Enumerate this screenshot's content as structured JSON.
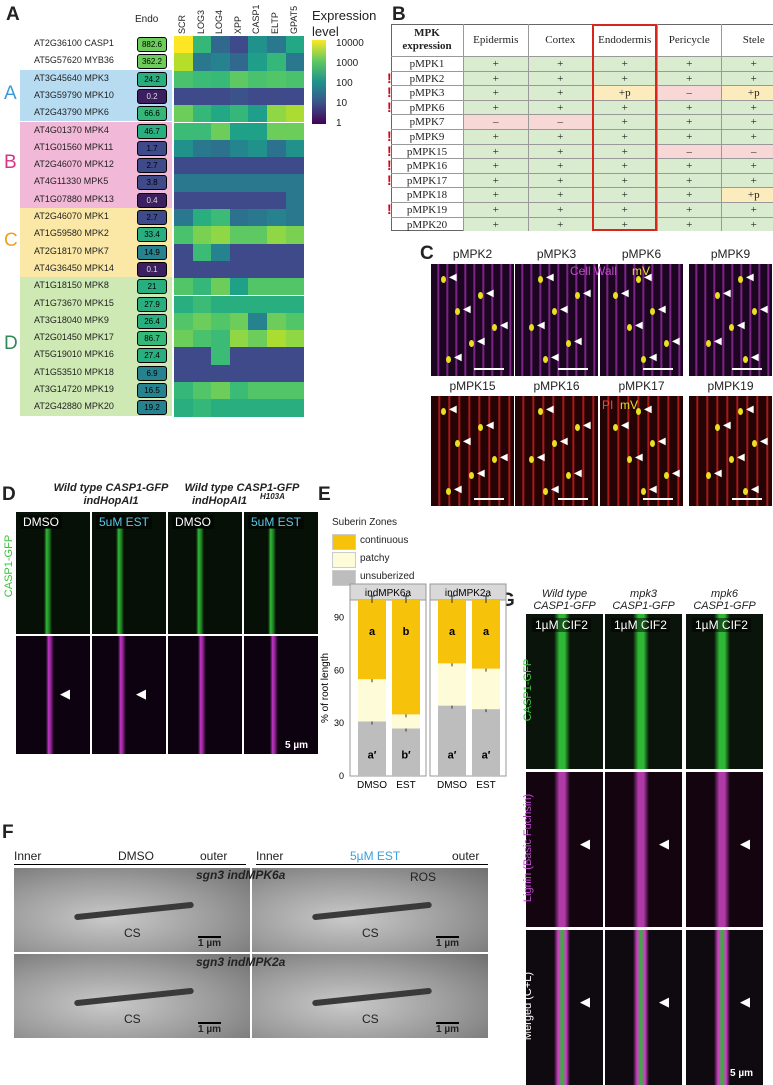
{
  "panels": {
    "A": "A",
    "B": "B",
    "C": "C",
    "D": "D",
    "E": "E",
    "F": "F",
    "G": "G"
  },
  "panelA": {
    "endo_header": "Endo",
    "columns": [
      "SCR",
      "LOG3",
      "LOG4",
      "XPP",
      "CASP1",
      "ELTP",
      "GPAT5"
    ],
    "legend_title": "Expression level",
    "legend_ticks": [
      "10000",
      "1000",
      "100",
      "10",
      "1"
    ],
    "groups": [
      "A",
      "B",
      "C",
      "D"
    ],
    "group_colors": {
      "A": "#b7dcf2",
      "B": "#f2b8d8",
      "C": "#fbe8a6",
      "D": "#cfe9b4"
    },
    "group_letter_colors": {
      "A": "#3a9ad9",
      "B": "#d63384",
      "C": "#f0a020",
      "D": "#2e8b57"
    },
    "rows": [
      {
        "id": "AT2G36100",
        "name": "CASP1",
        "endo": "882.6"
      },
      {
        "id": "AT5G57620",
        "name": "MYB36",
        "endo": "362.2"
      },
      {
        "id": "AT3G45640",
        "name": "MPK3",
        "endo": "24.2"
      },
      {
        "id": "AT3G59790",
        "name": "MPK10",
        "endo": "0.2"
      },
      {
        "id": "AT2G43790",
        "name": "MPK6",
        "endo": "66.6"
      },
      {
        "id": "AT4G01370",
        "name": "MPK4",
        "endo": "46.7"
      },
      {
        "id": "AT1G01560",
        "name": "MPK11",
        "endo": "1.7"
      },
      {
        "id": "AT2G46070",
        "name": "MPK12",
        "endo": "2.7"
      },
      {
        "id": "AT4G11330",
        "name": "MPK5",
        "endo": "3.8"
      },
      {
        "id": "AT1G07880",
        "name": "MPK13",
        "endo": "0.4"
      },
      {
        "id": "AT2G46070",
        "name": "MPK1",
        "endo": "2.7"
      },
      {
        "id": "AT1G59580",
        "name": "MPK2",
        "endo": "33.4"
      },
      {
        "id": "AT2G18170",
        "name": "MPK7",
        "endo": "14.9"
      },
      {
        "id": "AT4G36450",
        "name": "MPK14",
        "endo": "0.1"
      },
      {
        "id": "AT1G18150",
        "name": "MPK8",
        "endo": "21"
      },
      {
        "id": "AT1G73670",
        "name": "MPK15",
        "endo": "27.9"
      },
      {
        "id": "AT3G18040",
        "name": "MPK9",
        "endo": "26.4"
      },
      {
        "id": "AT2G01450",
        "name": "MPK17",
        "endo": "86.7"
      },
      {
        "id": "AT5G19010",
        "name": "MPK16",
        "endo": "27.4"
      },
      {
        "id": "AT1G53510",
        "name": "MPK18",
        "endo": "6.9"
      },
      {
        "id": "AT3G14720",
        "name": "MPK19",
        "endo": "16.5"
      },
      {
        "id": "AT2G42880",
        "name": "MPK20",
        "endo": "19.2"
      }
    ],
    "heat_colors": [
      [
        "#fde725",
        "#35b779",
        "#31688e",
        "#3e4a89",
        "#21918c",
        "#2a788e",
        "#22a884"
      ],
      [
        "#b5de2b",
        "#2a788e",
        "#26828e",
        "#31688e",
        "#1f9e89",
        "#35b779",
        "#2a788e"
      ],
      [
        "#4ac16d",
        "#3bbb75",
        "#38b977",
        "#5ec962",
        "#4ac16d",
        "#52c569",
        "#4ac16d"
      ],
      [
        "#3e4a89",
        "#3e4a89",
        "#3e4a89",
        "#3b528b",
        "#3e4a89",
        "#3e4a89",
        "#3e4a89"
      ],
      [
        "#6ccd5a",
        "#35b779",
        "#22a884",
        "#35b779",
        "#1f9e89",
        "#8fd744",
        "#aadc32"
      ],
      [
        "#3bbb75",
        "#3bbb75",
        "#6ccd5a",
        "#1fa188",
        "#1fa188",
        "#6ccd5a",
        "#6ccd5a"
      ],
      [
        "#21918c",
        "#2a788e",
        "#2c728e",
        "#25858e",
        "#21918c",
        "#2c728e",
        "#21918c"
      ],
      [
        "#3e4a89",
        "#3e4a89",
        "#3e4a89",
        "#3e4a89",
        "#3e4a89",
        "#3e4a89",
        "#3e4a89"
      ],
      [
        "#2a788e",
        "#2a788e",
        "#2a788e",
        "#2a788e",
        "#2a788e",
        "#2a788e",
        "#2a788e"
      ],
      [
        "#3e4a89",
        "#3e4a89",
        "#3e4a89",
        "#3e4a89",
        "#3e4a89",
        "#3e4a89",
        "#2a788e"
      ],
      [
        "#2a788e",
        "#29af7f",
        "#3bbb75",
        "#2c728e",
        "#2a788e",
        "#26828e",
        "#2a788e"
      ],
      [
        "#4ac16d",
        "#7ad151",
        "#8fd744",
        "#5ec962",
        "#5ec962",
        "#8fd744",
        "#7ad151"
      ],
      [
        "#3e4a89",
        "#3bbb75",
        "#26828e",
        "#3e4a89",
        "#3e4a89",
        "#3e4a89",
        "#3e4a89"
      ],
      [
        "#3e4a89",
        "#3e4a89",
        "#3e4a89",
        "#3e4a89",
        "#3e4a89",
        "#3e4a89",
        "#3e4a89"
      ],
      [
        "#52c569",
        "#35b779",
        "#6ccd5a",
        "#1fa188",
        "#52c569",
        "#52c569",
        "#52c569"
      ],
      [
        "#29af7f",
        "#3bbb75",
        "#29af7f",
        "#29af7f",
        "#29af7f",
        "#29af7f",
        "#29af7f"
      ],
      [
        "#52c569",
        "#6ccd5a",
        "#52c569",
        "#6ccd5a",
        "#26828e",
        "#6ccd5a",
        "#52c569"
      ],
      [
        "#6ccd5a",
        "#4ac16d",
        "#3bbb75",
        "#8fd744",
        "#6ccd5a",
        "#aadc32",
        "#8fd744"
      ],
      [
        "#3e4a89",
        "#3e4a89",
        "#3bbb75",
        "#3e4a89",
        "#3e4a89",
        "#3e4a89",
        "#3e4a89"
      ],
      [
        "#3e4a89",
        "#3e4a89",
        "#3e4a89",
        "#3e4a89",
        "#3e4a89",
        "#3e4a89",
        "#3e4a89"
      ],
      [
        "#35b779",
        "#52c569",
        "#6ccd5a",
        "#3bbb75",
        "#52c569",
        "#52c569",
        "#52c569"
      ],
      [
        "#29af7f",
        "#35b779",
        "#29af7f",
        "#29af7f",
        "#29af7f",
        "#29af7f",
        "#29af7f"
      ]
    ]
  },
  "panelB": {
    "header_line1": "MPK",
    "header_line2": "expression",
    "columns": [
      "Epidermis",
      "Cortex",
      "Endodermis",
      "Pericycle",
      "Stele"
    ],
    "rows": [
      {
        "name": "pMPK1",
        "flag": "",
        "vals": [
          "+",
          "+",
          "+",
          "+",
          "+"
        ]
      },
      {
        "name": "pMPK2",
        "flag": "!",
        "vals": [
          "+",
          "+",
          "+",
          "+",
          "+"
        ]
      },
      {
        "name": "pMPK3",
        "flag": "!",
        "vals": [
          "+",
          "+",
          "+p",
          "–",
          "+p"
        ]
      },
      {
        "name": "pMPK6",
        "flag": "!",
        "vals": [
          "+",
          "+",
          "+",
          "+",
          "+"
        ]
      },
      {
        "name": "pMPK7",
        "flag": "",
        "vals": [
          "–",
          "–",
          "+",
          "+",
          "+"
        ]
      },
      {
        "name": "pMPK9",
        "flag": "!",
        "vals": [
          "+",
          "+",
          "+",
          "+",
          "+"
        ]
      },
      {
        "name": "pMPK15",
        "flag": "!",
        "vals": [
          "+",
          "+",
          "+",
          "–",
          "–"
        ]
      },
      {
        "name": "pMPK16",
        "flag": "!",
        "vals": [
          "+",
          "+",
          "+",
          "+",
          "+"
        ]
      },
      {
        "name": "pMPK17",
        "flag": "!",
        "vals": [
          "+",
          "+",
          "+",
          "+",
          "+"
        ]
      },
      {
        "name": "pMPK18",
        "flag": "",
        "vals": [
          "+",
          "+",
          "+",
          "+",
          "+p"
        ]
      },
      {
        "name": "pMPK19",
        "flag": "!",
        "vals": [
          "+",
          "+",
          "+",
          "+",
          "+"
        ]
      },
      {
        "name": "pMPK20",
        "flag": "",
        "vals": [
          "+",
          "+",
          "+",
          "+",
          "+"
        ]
      }
    ],
    "color_plus": "#d9ecd0",
    "color_minus": "#f8d7d7",
    "color_p": "#fcebbd"
  },
  "panelC": {
    "top_labels": [
      "pMPK2",
      "pMPK3",
      "pMPK6",
      "pMPK9"
    ],
    "bottom_labels": [
      "pMPK15",
      "pMPK16",
      "pMPK17",
      "pMPK19"
    ],
    "cellwall_label": "Cell Wall",
    "mv_label": "mV",
    "pi_label": "PI",
    "mv_label2": "mV"
  },
  "panelD": {
    "head1": "Wild type CASP1-GFP",
    "head1b": "indHopAI1",
    "head2": "Wild type CASP1-GFP",
    "head2b": "indHopAI1",
    "head2sup": "H103A",
    "chips": [
      "DMSO",
      "5uM EST",
      "DMSO",
      "5uM EST"
    ],
    "ylabel": "CASP1-GFP",
    "scalebar": "5 µm"
  },
  "panelE": {
    "legend_title": "Suberin Zones",
    "legend": [
      "continuous",
      "patchy",
      "unsuberized"
    ],
    "ylabel": "% of root length",
    "facets": [
      "indMPK6a",
      "indMPK2a"
    ],
    "xticks": [
      "DMSO",
      "EST",
      "DMSO",
      "EST"
    ],
    "yticks": [
      "0",
      "30",
      "60",
      "90"
    ]
  },
  "chart_data": {
    "type": "bar",
    "title": "",
    "facets": [
      "indMPK6a",
      "indMPK2a"
    ],
    "categories": [
      "DMSO",
      "EST"
    ],
    "series": [
      {
        "name": "unsuberized",
        "values": [
          [
            31,
            27
          ],
          [
            40,
            38
          ]
        ]
      },
      {
        "name": "patchy",
        "values": [
          [
            24,
            8
          ],
          [
            24,
            23
          ]
        ]
      },
      {
        "name": "continuous",
        "values": [
          [
            45,
            65
          ],
          [
            36,
            39
          ]
        ]
      }
    ],
    "letters_top": [
      [
        "a",
        "b"
      ],
      [
        "a",
        "a"
      ]
    ],
    "letters_bottom": [
      [
        "a′",
        "b′"
      ],
      [
        "a′",
        "a′"
      ]
    ],
    "ylabel": "% of root length",
    "ylim": [
      0,
      100
    ],
    "colors": {
      "unsuberized": "#bdbdbd",
      "patchy": "#fdfbd8",
      "continuous": "#f6c20a"
    }
  },
  "panelF": {
    "left_inner": "Inner",
    "left_title": "DMSO",
    "left_outer": "outer",
    "right_inner": "Inner",
    "right_title": "5µM EST",
    "right_outer": "outer",
    "row1_label": "sgn3 indMPK6a",
    "row2_label": "sgn3 indMPK2a",
    "cs": "CS",
    "ros": "ROS",
    "scale": "1 µm"
  },
  "panelG": {
    "cols": [
      {
        "line1": "Wild type",
        "line2": "CASP1-GFP"
      },
      {
        "line1": "mpk3",
        "line2": "CASP1-GFP"
      },
      {
        "line1": "mpk6",
        "line2": "CASP1-GFP"
      }
    ],
    "chip": "1µM CIF2",
    "row_labels": [
      "CASP1-GFP",
      "Lignin (Basic Fuchsin)",
      "Merged (C+L)"
    ],
    "scalebar": "5 µm"
  }
}
